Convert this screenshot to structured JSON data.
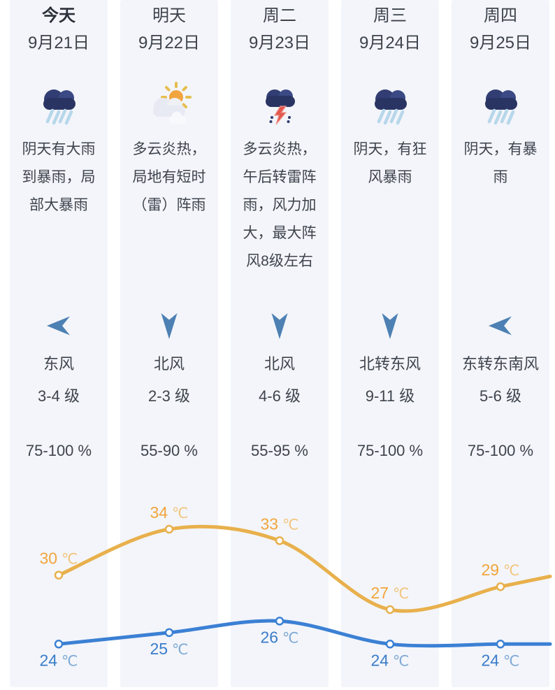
{
  "forecast": {
    "columns": [
      {
        "day": "今天",
        "date": "9月21日",
        "is_today": true,
        "icon": "heavy-rain",
        "description": "阴天有大雨到暴雨，局部大暴雨",
        "wind_icon": "arrow-left",
        "wind_direction": "东风",
        "wind_force": "3-4 级",
        "humidity": "75-100 %"
      },
      {
        "day": "明天",
        "date": "9月22日",
        "is_today": false,
        "icon": "partly-cloudy",
        "description": "多云炎热，局地有短时（雷）阵雨",
        "wind_icon": "arrow-down",
        "wind_direction": "北风",
        "wind_force": "2-3 级",
        "humidity": "55-90 %"
      },
      {
        "day": "周二",
        "date": "9月23日",
        "is_today": false,
        "icon": "thunder-shower",
        "description": "多云炎热，午后转雷阵雨，风力加大，最大阵风8级左右",
        "wind_icon": "arrow-down",
        "wind_direction": "北风",
        "wind_force": "4-6 级",
        "humidity": "55-95 %"
      },
      {
        "day": "周三",
        "date": "9月24日",
        "is_today": false,
        "icon": "heavy-rain",
        "description": "阴天，有狂风暴雨",
        "wind_icon": "arrow-down",
        "wind_direction": "北转东风",
        "wind_force": "9-11 级",
        "humidity": "75-100 %"
      },
      {
        "day": "周四",
        "date": "9月25日",
        "is_today": false,
        "icon": "heavy-rain",
        "description": "阴天，有暴雨",
        "wind_icon": "arrow-left",
        "wind_direction": "东转东南风",
        "wind_force": "5-6 级",
        "humidity": "75-100 %"
      }
    ]
  },
  "chart_data": {
    "type": "line",
    "categories": [
      "9月21日",
      "9月22日",
      "9月23日",
      "9月24日",
      "9月25日"
    ],
    "unit": "℃",
    "series": [
      {
        "name": "high",
        "values": [
          30,
          34,
          33,
          27,
          29
        ],
        "color": "#e8b04c",
        "label_color": "#f2a53c",
        "unit_color": "#f3c57e",
        "label_pos": "above"
      },
      {
        "name": "low",
        "values": [
          24,
          25,
          26,
          24,
          24
        ],
        "color": "#3b80d4",
        "label_color": "#3a7cc9",
        "unit_color": "#7fa9d6",
        "label_pos": "below"
      }
    ],
    "ylim": [
      23,
      35.5
    ],
    "grid": false,
    "legend": false,
    "markers": true
  },
  "colors": {
    "column_bg": "#f3f5fa",
    "text_primary": "#3f444d",
    "text_day": "#3d424b",
    "text_today": "#2b2f38",
    "wind_arrow": "#4d80b3"
  }
}
